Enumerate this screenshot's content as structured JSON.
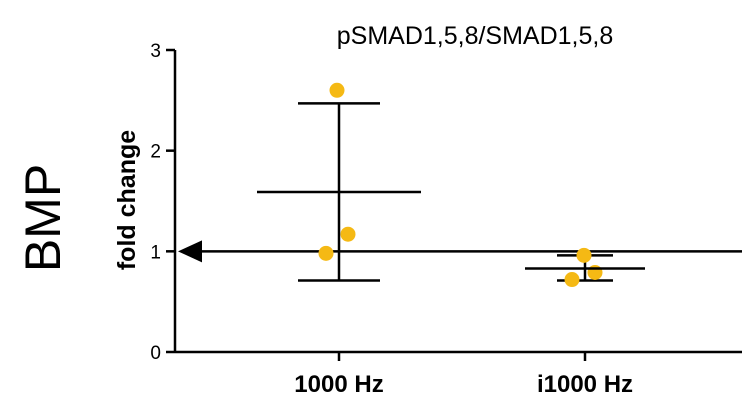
{
  "side_label": "BMP",
  "chart_data": {
    "type": "scatter",
    "title": "pSMAD1,5,8/SMAD1,5,8",
    "ylabel": "fold change",
    "xlabel": "",
    "ylim": [
      0,
      3
    ],
    "yticks": [
      "0",
      "1",
      "2",
      "3"
    ],
    "grid": false,
    "categories": [
      "1000 Hz",
      "i1000 Hz"
    ],
    "groups": [
      {
        "category": "1000 Hz",
        "points": [
          2.6,
          1.17,
          0.98
        ],
        "mean": 1.59,
        "error_upper": 2.47,
        "error_lower": 0.71
      },
      {
        "category": "i1000 Hz",
        "points": [
          0.96,
          0.79,
          0.72
        ],
        "mean": 0.83,
        "error_upper": 0.96,
        "error_lower": 0.71
      }
    ],
    "reference_line": {
      "y": 1,
      "arrow": "left"
    },
    "point_color": "#F5B914",
    "line_color": "#000000"
  }
}
